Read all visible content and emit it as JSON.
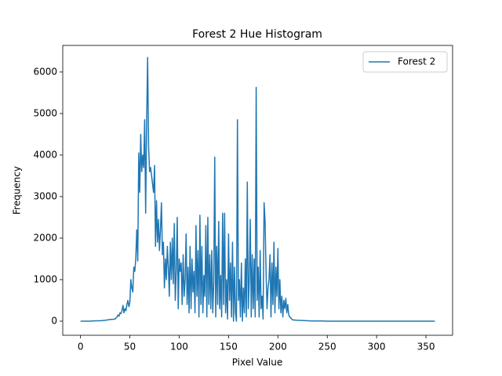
{
  "chart_data": {
    "type": "line",
    "title": "Forest 2 Hue Histogram",
    "x_label": "Pixel Value",
    "y_label": "Frequency",
    "legend": "upper right",
    "grid": false,
    "xlim": [
      -18,
      377
    ],
    "ylim": [
      -340,
      6640
    ],
    "xticks": [
      0,
      50,
      100,
      150,
      200,
      250,
      300,
      350
    ],
    "yticks": [
      0,
      1000,
      2000,
      3000,
      4000,
      5000,
      6000
    ],
    "x": [
      0,
      5,
      10,
      15,
      20,
      25,
      30,
      35,
      36,
      37,
      38,
      39,
      40,
      41,
      42,
      43,
      44,
      45,
      46,
      47,
      48,
      49,
      50,
      51,
      52,
      53,
      54,
      55,
      56,
      57,
      58,
      59,
      60,
      61,
      62,
      63,
      64,
      65,
      66,
      67,
      68,
      69,
      70,
      71,
      72,
      73,
      74,
      75,
      76,
      77,
      78,
      79,
      80,
      81,
      82,
      83,
      84,
      85,
      86,
      87,
      88,
      89,
      90,
      91,
      92,
      93,
      94,
      95,
      96,
      97,
      98,
      99,
      100,
      101,
      102,
      103,
      104,
      105,
      106,
      107,
      108,
      109,
      110,
      111,
      112,
      113,
      114,
      115,
      116,
      117,
      118,
      119,
      120,
      121,
      122,
      123,
      124,
      125,
      126,
      127,
      128,
      129,
      130,
      131,
      132,
      133,
      134,
      135,
      136,
      137,
      138,
      139,
      140,
      141,
      142,
      143,
      144,
      145,
      146,
      147,
      148,
      149,
      150,
      151,
      152,
      153,
      154,
      155,
      156,
      157,
      158,
      159,
      160,
      161,
      162,
      163,
      164,
      165,
      166,
      167,
      168,
      169,
      170,
      171,
      172,
      173,
      174,
      175,
      176,
      177,
      178,
      179,
      180,
      181,
      182,
      183,
      184,
      185,
      186,
      187,
      188,
      189,
      190,
      191,
      192,
      193,
      194,
      195,
      196,
      197,
      198,
      199,
      200,
      201,
      202,
      203,
      204,
      205,
      206,
      207,
      208,
      209,
      210,
      211,
      212,
      213,
      214,
      215,
      220,
      225,
      230,
      235,
      240,
      245,
      250,
      255,
      260,
      265,
      270,
      275,
      280,
      285,
      290,
      295,
      300,
      305,
      310,
      315,
      320,
      325,
      330,
      335,
      340,
      345,
      350,
      355,
      359
    ],
    "series": [
      {
        "name": "Forest 2",
        "color": "#1f77b4",
        "values": [
          0,
          0,
          0,
          10,
          10,
          20,
          40,
          50,
          80,
          100,
          150,
          120,
          200,
          180,
          250,
          380,
          200,
          300,
          250,
          400,
          500,
          350,
          450,
          1000,
          800,
          700,
          1300,
          1200,
          1500,
          2200,
          1450,
          4050,
          3100,
          4500,
          3600,
          4000,
          3700,
          4850,
          2600,
          4800,
          6350,
          4200,
          3600,
          3700,
          3500,
          3300,
          3100,
          3750,
          1800,
          2900,
          1900,
          2450,
          1700,
          2200,
          2850,
          1600,
          1900,
          800,
          1500,
          1000,
          1800,
          1300,
          600,
          1900,
          1000,
          2000,
          900,
          2350,
          500,
          1200,
          2500,
          300,
          1500,
          1200,
          1400,
          400,
          1600,
          600,
          1000,
          2100,
          400,
          1300,
          200,
          1800,
          300,
          1500,
          700,
          1200,
          200,
          2300,
          600,
          1700,
          100,
          2550,
          400,
          1800,
          200,
          1100,
          600,
          2300,
          100,
          2500,
          400,
          1600,
          300,
          1700,
          200,
          900,
          3950,
          100,
          1800,
          400,
          2400,
          300,
          1100,
          100,
          2600,
          400,
          2600,
          200,
          1000,
          50,
          2100,
          500,
          1400,
          100,
          1900,
          0,
          1300,
          200,
          0,
          4850,
          500,
          1000,
          100,
          1400,
          0,
          800,
          200,
          1500,
          100,
          3350,
          300,
          1000,
          2450,
          100,
          1600,
          300,
          1500,
          100,
          5630,
          500,
          1300,
          100,
          1700,
          300,
          600,
          50,
          2850,
          2400,
          1200,
          300,
          800,
          1000,
          1600,
          100,
          1400,
          400,
          1900,
          200,
          1300,
          600,
          1750,
          300,
          1000,
          200,
          600,
          100,
          500,
          300,
          550,
          200,
          400,
          150,
          100,
          80,
          50,
          30,
          20,
          15,
          10,
          5,
          5,
          5,
          0,
          0,
          0,
          0,
          0,
          0,
          0,
          0,
          0,
          0,
          0,
          0,
          0,
          0,
          0,
          0,
          0,
          0,
          0,
          0,
          0,
          0,
          0
        ]
      }
    ]
  }
}
